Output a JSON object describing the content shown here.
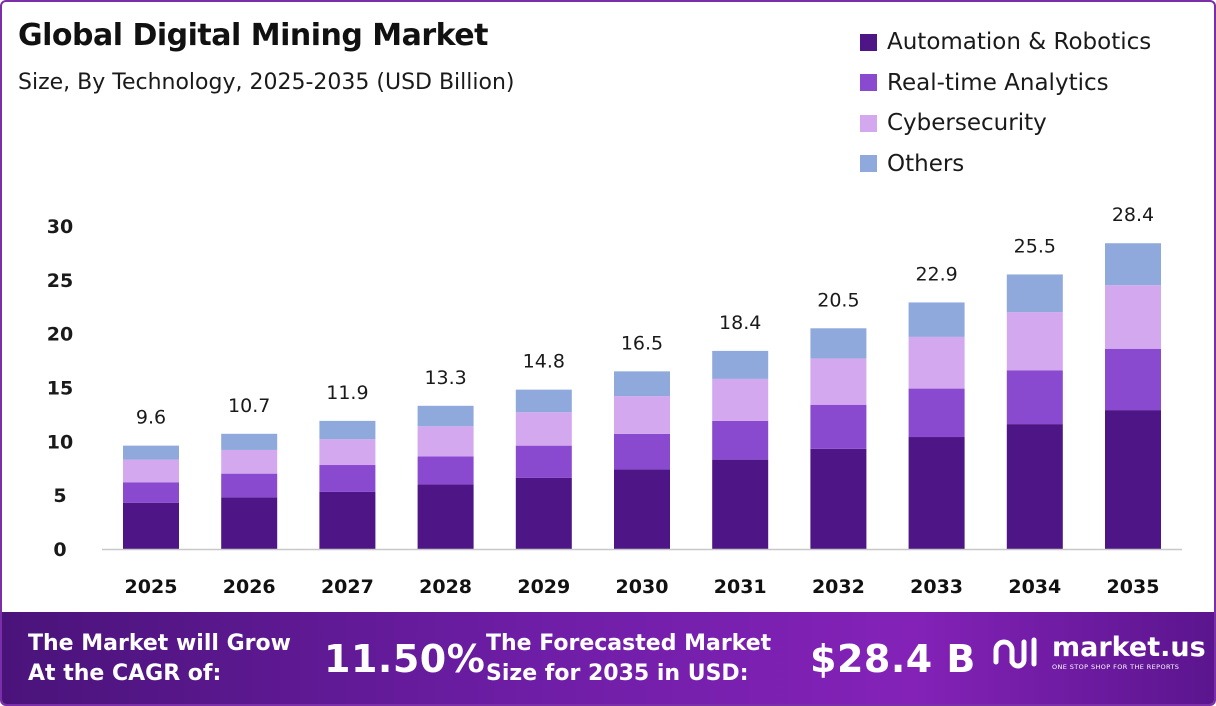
{
  "header": {
    "title": "Global Digital Mining Market",
    "subtitle": "Size, By Technology, 2025-2035 (USD Billion)"
  },
  "chart_data": {
    "type": "bar",
    "stacked": true,
    "title": "Global Digital Mining Market",
    "subtitle": "Size, By Technology, 2025-2035 (USD Billion)",
    "xlabel": "",
    "ylabel": "",
    "ylim": [
      0,
      30
    ],
    "yticks": [
      0,
      5,
      10,
      15,
      20,
      25,
      30
    ],
    "grid": false,
    "legend_position": "top-right",
    "categories": [
      "2025",
      "2026",
      "2027",
      "2028",
      "2029",
      "2030",
      "2031",
      "2032",
      "2033",
      "2034",
      "2035"
    ],
    "series": [
      {
        "name": "Automation & Robotics",
        "color": "#4d1585",
        "values": [
          4.3,
          4.8,
          5.3,
          6.0,
          6.6,
          7.4,
          8.3,
          9.3,
          10.4,
          11.6,
          12.9
        ]
      },
      {
        "name": "Real-time Analytics",
        "color": "#8a4ad0",
        "values": [
          1.9,
          2.2,
          2.5,
          2.6,
          3.0,
          3.3,
          3.6,
          4.1,
          4.5,
          5.0,
          5.7
        ]
      },
      {
        "name": "Cybersecurity",
        "color": "#d3a8ee",
        "values": [
          2.1,
          2.2,
          2.4,
          2.8,
          3.1,
          3.5,
          3.9,
          4.3,
          4.8,
          5.4,
          5.9
        ]
      },
      {
        "name": "Others",
        "color": "#8fa9dc",
        "values": [
          1.3,
          1.5,
          1.7,
          1.9,
          2.1,
          2.3,
          2.6,
          2.8,
          3.2,
          3.5,
          3.9
        ]
      }
    ],
    "totals": [
      "9.6",
      "10.7",
      "11.9",
      "13.3",
      "14.8",
      "16.5",
      "18.4",
      "20.5",
      "22.9",
      "25.5",
      "28.4"
    ]
  },
  "banner": {
    "cagr_label": "The Market will Grow\nAt the CAGR of:",
    "cagr_value": "11.50%",
    "forecast_label": "The Forecasted Market\nSize for 2035 in USD:",
    "forecast_value": "$28.4 B",
    "logo_name": "market.us",
    "logo_tagline": "ONE STOP SHOP FOR THE REPORTS"
  }
}
